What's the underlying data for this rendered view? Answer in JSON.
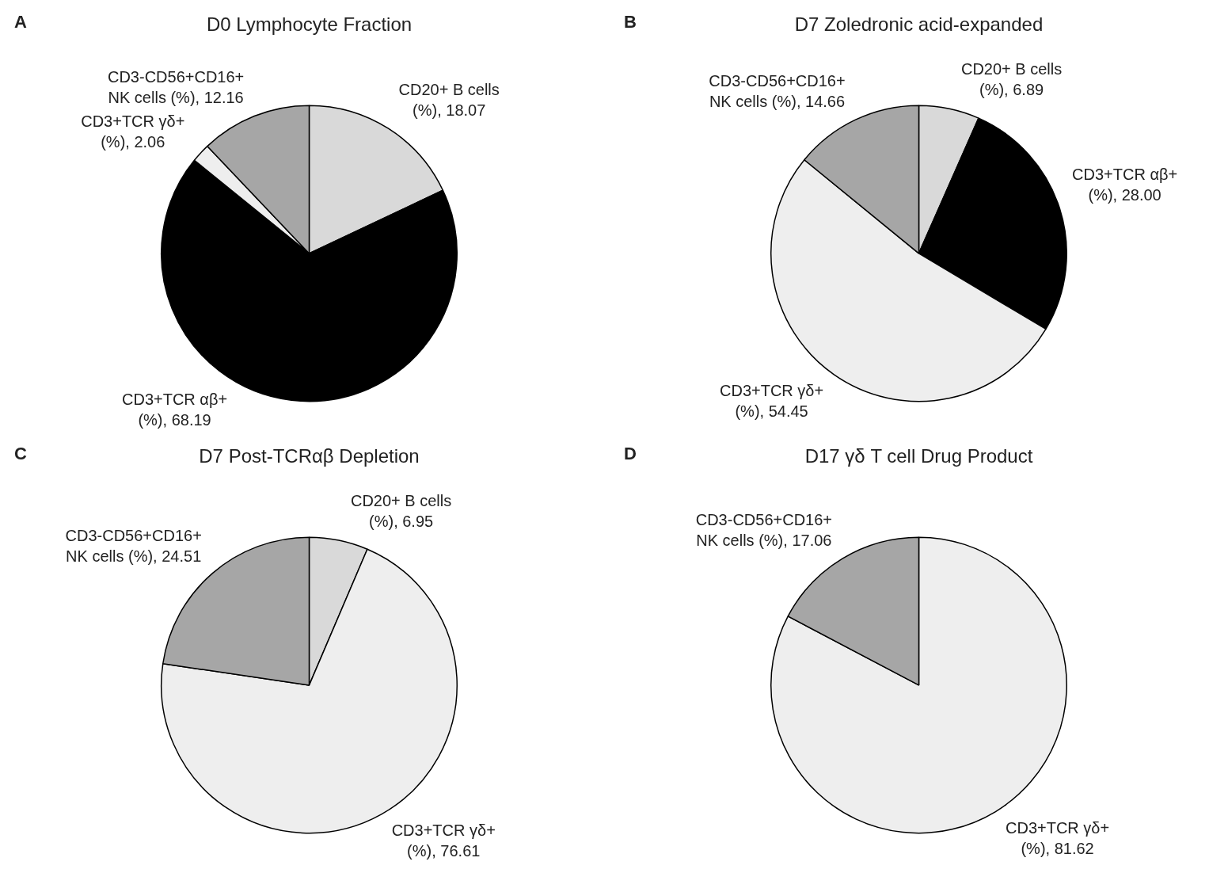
{
  "chart_data": [
    {
      "type": "pie",
      "title": "D0 Lymphocyte Fraction",
      "annotations": [
        "A"
      ],
      "categories": [
        "CD20+ B cells (%)",
        "CD3+TCR αβ+ (%)",
        "CD3+TCR γδ+ (%)",
        "CD3-CD56+CD16+ NK cells (%)"
      ],
      "values": [
        18.07,
        68.19,
        2.06,
        12.16
      ],
      "value_labels": [
        "18.07",
        "68.19",
        "2.06",
        "12.16"
      ],
      "colors": [
        "#d9d9d9",
        "#000000",
        "#eeeeee",
        "#a6a6a6"
      ]
    },
    {
      "type": "pie",
      "title": "D7 Zoledronic acid-expanded",
      "annotations": [
        "B"
      ],
      "categories": [
        "CD20+ B cells (%)",
        "CD3+TCR αβ+ (%)",
        "CD3+TCR γδ+ (%)",
        "CD3-CD56+CD16+ NK cells (%)"
      ],
      "values": [
        6.89,
        28.0,
        54.45,
        14.66
      ],
      "value_labels": [
        "6.89",
        "28.00",
        "54.45",
        "14.66"
      ],
      "colors": [
        "#d9d9d9",
        "#000000",
        "#eeeeee",
        "#a6a6a6"
      ]
    },
    {
      "type": "pie",
      "title": "D7 Post-TCRαβ Depletion",
      "annotations": [
        "C"
      ],
      "categories": [
        "CD20+ B cells (%)",
        "CD3+TCR γδ+ (%)",
        "CD3-CD56+CD16+ NK cells (%)"
      ],
      "values": [
        6.95,
        76.61,
        24.51
      ],
      "value_labels": [
        "6.95",
        "76.61",
        "24.51"
      ],
      "colors": [
        "#d9d9d9",
        "#eeeeee",
        "#a6a6a6"
      ]
    },
    {
      "type": "pie",
      "title": "D17 γδ T cell Drug Product",
      "annotations": [
        "D"
      ],
      "categories": [
        "CD3+TCR γδ+ (%)",
        "CD3-CD56+CD16+ NK cells (%)"
      ],
      "values": [
        81.62,
        17.06
      ],
      "value_labels": [
        "81.62",
        "17.06"
      ],
      "colors": [
        "#eeeeee",
        "#a6a6a6"
      ]
    }
  ]
}
